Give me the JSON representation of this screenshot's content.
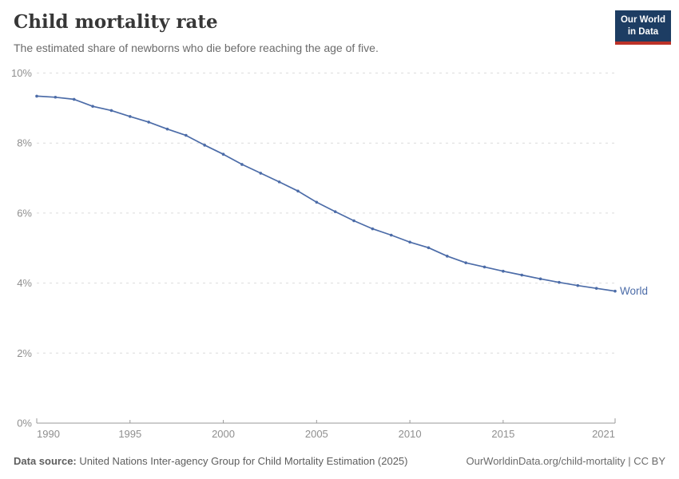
{
  "header": {
    "title": "Child mortality rate",
    "subtitle": "The estimated share of newborns who die before reaching the age of five.",
    "logo_line1": "Our World",
    "logo_line2": "in Data"
  },
  "footer": {
    "datasource_label": "Data source:",
    "datasource_text": " United Nations Inter-agency Group for Child Mortality Estimation (2025)",
    "link_text": "OurWorldinData.org/child-mortality | CC BY"
  },
  "colors": {
    "accent": "#4C6CA8",
    "logo_bg": "#1d3d63",
    "logo_red": "#bc3228",
    "title_text": "#373737",
    "muted_text": "#6b6b6b",
    "axis": "#9a9a9a",
    "tick_label": "#8f8f8f",
    "grid": "#dcdcdc"
  },
  "chart_data": {
    "type": "line",
    "title": "Child mortality rate",
    "xlabel": "",
    "ylabel": "",
    "xlim": [
      1990,
      2021
    ],
    "ylim": [
      0,
      10
    ],
    "grid": "horizontal-dashed",
    "legend_position": "line-end-label",
    "x": [
      1990,
      1991,
      1992,
      1993,
      1994,
      1995,
      1996,
      1997,
      1998,
      1999,
      2000,
      2001,
      2002,
      2003,
      2004,
      2005,
      2006,
      2007,
      2008,
      2009,
      2010,
      2011,
      2012,
      2013,
      2014,
      2015,
      2016,
      2017,
      2018,
      2019,
      2020,
      2021
    ],
    "series": [
      {
        "name": "World",
        "color": "#4C6CA8",
        "values": [
          9.34,
          9.31,
          9.25,
          9.05,
          8.93,
          8.76,
          8.6,
          8.4,
          8.22,
          7.94,
          7.68,
          7.39,
          7.14,
          6.89,
          6.63,
          6.31,
          6.04,
          5.78,
          5.55,
          5.37,
          5.17,
          5.01,
          4.77,
          4.58,
          4.46,
          4.34,
          4.23,
          4.12,
          4.02,
          3.93,
          3.85,
          3.77
        ]
      }
    ],
    "y_ticks": [
      {
        "value": 0,
        "label": "0%"
      },
      {
        "value": 2,
        "label": "2%"
      },
      {
        "value": 4,
        "label": "4%"
      },
      {
        "value": 6,
        "label": "6%"
      },
      {
        "value": 8,
        "label": "8%"
      },
      {
        "value": 10,
        "label": "10%"
      }
    ],
    "x_ticks": [
      {
        "value": 1990,
        "label": "1990"
      },
      {
        "value": 1995,
        "label": "1995"
      },
      {
        "value": 2000,
        "label": "2000"
      },
      {
        "value": 2005,
        "label": "2005"
      },
      {
        "value": 2010,
        "label": "2010"
      },
      {
        "value": 2015,
        "label": "2015"
      },
      {
        "value": 2021,
        "label": "2021"
      }
    ]
  }
}
